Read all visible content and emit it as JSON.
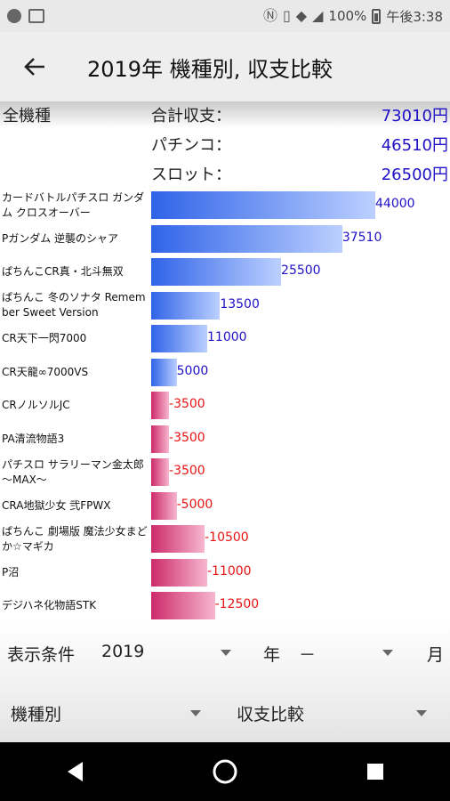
{
  "status_bar": {
    "battery": "100%",
    "time": "午後3:38"
  },
  "app_bar": {
    "title": "2019年 機種別, 収支比較"
  },
  "summary": {
    "scope_label": "全機種",
    "rows": [
      {
        "label": "合計収支：",
        "value": "73010円"
      },
      {
        "label": "パチンコ：",
        "value": "46510円"
      },
      {
        "label": "スロット：",
        "value": "26500円"
      }
    ]
  },
  "chart_data": {
    "type": "bar",
    "orientation": "horizontal",
    "colors": {
      "positive": "#2f63e8",
      "negative": "#cc2a6a",
      "positive_label": "#1f10c8",
      "negative_label": "#e81313"
    },
    "categories": [
      "カードバトルパチスロ ガンダム クロスオーバー",
      "Pガンダム 逆襲のシャア",
      "ぱちんこCR真・北斗無双",
      "ぱちんこ 冬のソナタ Remember Sweet Version",
      "CR天下一閃7000",
      "CR天龍∞7000VS",
      "CRノルソルJC",
      "PA清流物語3",
      "パチスロ サラリーマン金太郎 ～MAX～",
      "CRA地獄少女 弐FPWX",
      "ぱちんこ 劇場版 魔法少女まどか☆マギカ",
      "P沼",
      "デジハネ化物語STK"
    ],
    "values": [
      44000,
      37510,
      25500,
      13500,
      11000,
      5000,
      -3500,
      -3500,
      -3500,
      -5000,
      -10500,
      -11000,
      -12500
    ],
    "value_labels": [
      "44000",
      "37510",
      "25500",
      "13500",
      "11000",
      "5000",
      "-3500",
      "-3500",
      "-3500",
      "-5000",
      "-10500",
      "-11000",
      "-12500"
    ]
  },
  "filters": {
    "condition_label": "表示条件",
    "year_value": "2019",
    "year_unit": "年",
    "month_value": "－",
    "month_unit": "月",
    "group_value": "機種別",
    "mode_value": "収支比較"
  },
  "icons": {
    "back": "arrow-left-icon",
    "nav_back": "triangle-back-icon",
    "nav_home": "circle-home-icon",
    "nav_recents": "square-recents-icon"
  }
}
